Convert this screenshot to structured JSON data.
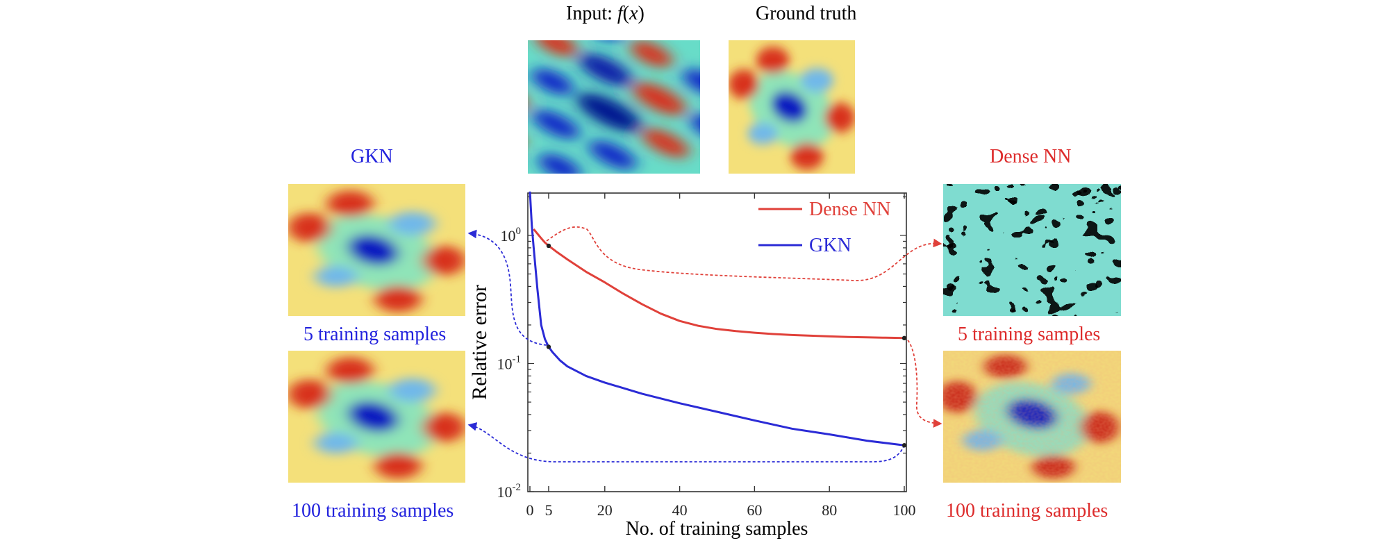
{
  "panels": {
    "input_title": "Input: ",
    "input_func": "f",
    "input_paren_open": "(",
    "input_var": "x",
    "input_paren_close": ")",
    "ground_truth_title": "Ground truth",
    "left_method": "GKN",
    "right_method": "Dense NN",
    "left_caption_5": "5 training samples",
    "left_caption_100": "100 training samples",
    "right_caption_5": "5 training samples",
    "right_caption_100": "100 training samples"
  },
  "colors": {
    "gkn": "#2b2bd6",
    "dense": "#e0413a",
    "heat_low": "#0a1fb5",
    "heat_mid": "#6fe0d0",
    "heat_high": "#d42a1e",
    "heat_bg": "#f4e07a"
  },
  "chart_data": {
    "type": "line",
    "xlabel": "No. of training samples",
    "ylabel": "Relative error",
    "xlim": [
      0,
      100
    ],
    "ylim": [
      0.01,
      2.3
    ],
    "yscale": "log",
    "xticks": [
      0,
      5,
      20,
      40,
      60,
      80,
      100
    ],
    "xtick_labels": [
      "0",
      "5",
      "20",
      "40",
      "60",
      "80",
      "100"
    ],
    "yticks": [
      {
        "value": 0.01,
        "base": "10",
        "exp": "-2"
      },
      {
        "value": 0.1,
        "base": "10",
        "exp": "-1"
      },
      {
        "value": 1,
        "base": "10",
        "exp": "0"
      }
    ],
    "legend_position": "top-right",
    "series": [
      {
        "name": "Dense NN",
        "color": "#e0413a",
        "x": [
          1,
          2,
          3,
          4,
          5,
          7,
          10,
          15,
          20,
          25,
          30,
          35,
          40,
          45,
          50,
          55,
          60,
          65,
          70,
          75,
          80,
          85,
          90,
          95,
          100
        ],
        "y": [
          1.12,
          1.03,
          0.95,
          0.88,
          0.83,
          0.75,
          0.65,
          0.52,
          0.43,
          0.35,
          0.29,
          0.245,
          0.215,
          0.197,
          0.186,
          0.179,
          0.174,
          0.17,
          0.167,
          0.165,
          0.163,
          0.161,
          0.16,
          0.159,
          0.158
        ]
      },
      {
        "name": "GKN",
        "color": "#2b2bd6",
        "x": [
          0,
          0.5,
          1,
          2,
          3,
          4,
          5,
          6,
          8,
          10,
          15,
          20,
          30,
          40,
          50,
          60,
          70,
          80,
          90,
          100
        ],
        "y": [
          2.2,
          1.2,
          0.8,
          0.38,
          0.2,
          0.155,
          0.135,
          0.123,
          0.106,
          0.095,
          0.08,
          0.071,
          0.058,
          0.049,
          0.042,
          0.036,
          0.031,
          0.028,
          0.025,
          0.023
        ]
      }
    ],
    "markers": [
      {
        "series": "Dense NN",
        "x": 5,
        "y": 0.83
      },
      {
        "series": "Dense NN",
        "x": 100,
        "y": 0.158
      },
      {
        "series": "GKN",
        "x": 5,
        "y": 0.135
      },
      {
        "series": "GKN",
        "x": 100,
        "y": 0.023
      }
    ]
  }
}
